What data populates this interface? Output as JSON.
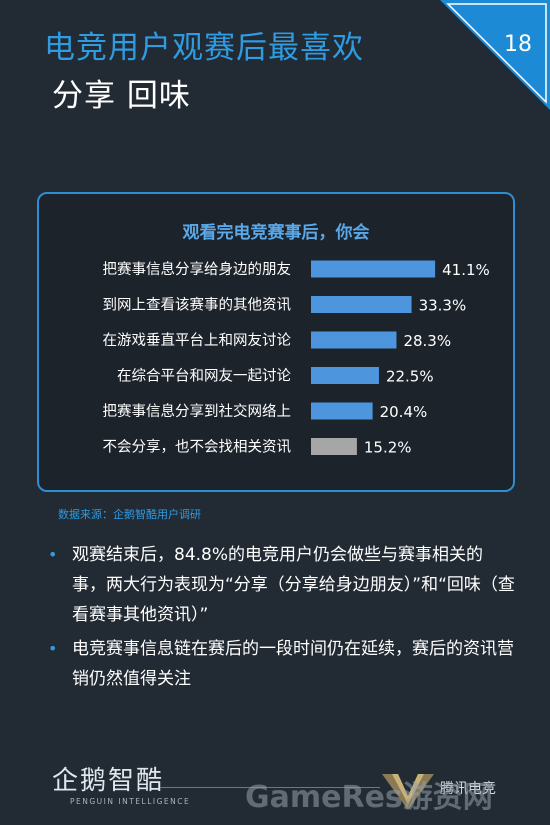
{
  "header": {
    "title_line1": "电竞用户观赛后最喜欢",
    "title_line2": "分享 回味",
    "page_number": "18",
    "accent_color": "#2f9be0"
  },
  "panel": {
    "title": "观看完电竞赛事后，你会"
  },
  "chart_data": {
    "type": "bar",
    "orientation": "horizontal",
    "title": "观看完电竞赛事后，你会",
    "categories": [
      "把赛事信息分享给身边的朋友",
      "到网上查看该赛事的其他资讯",
      "在游戏垂直平台上和网友讨论",
      "在综合平台和网友一起讨论",
      "把赛事信息分享到社交网络上",
      "不会分享，也不会找相关资讯"
    ],
    "values": [
      41.1,
      33.3,
      28.3,
      22.5,
      20.4,
      15.2
    ],
    "value_labels": [
      "41.1%",
      "33.3%",
      "28.3%",
      "22.5%",
      "20.4%",
      "15.2%"
    ],
    "unit": "%",
    "bar_colors": [
      "#4d96dd",
      "#4d96dd",
      "#4d96dd",
      "#4d96dd",
      "#4d96dd",
      "#a6a6a6"
    ],
    "grid": false,
    "legend": "none"
  },
  "source": "数据来源：企鹅智酷用户调研",
  "bullets": [
    "观赛结束后，84.8%的电竞用户仍会做些与赛事相关的事，两大行为表现为“分享（分享给身边朋友）”和“回味（查看赛事其他资讯）”",
    "电竞赛事信息链在赛后的一段时间仍在延续，赛后的资讯营销仍然值得关注"
  ],
  "footer": {
    "logo_cn": "企鹅智酷",
    "logo_en": "PENGUIN INTELLIGENCE",
    "brand": "腾讯电竞",
    "watermark": "GameRes游资网"
  }
}
